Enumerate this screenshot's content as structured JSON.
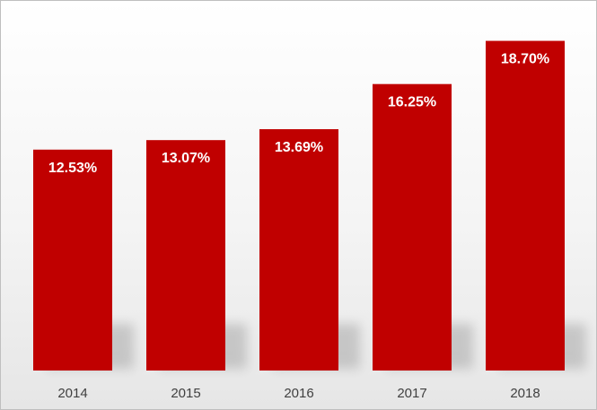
{
  "chart_data": {
    "type": "bar",
    "title": "",
    "xlabel": "",
    "ylabel": "",
    "categories": [
      "2014",
      "2015",
      "2016",
      "2017",
      "2018"
    ],
    "values": [
      12.53,
      13.07,
      13.69,
      16.25,
      18.7
    ],
    "data_labels": [
      "12.53%",
      "13.07%",
      "13.69%",
      "16.25%",
      "18.70%"
    ],
    "ylim": [
      0,
      20
    ],
    "grid": false,
    "legend": "none",
    "bar_color": "#C00000",
    "label_color": "#FFFFFF"
  }
}
